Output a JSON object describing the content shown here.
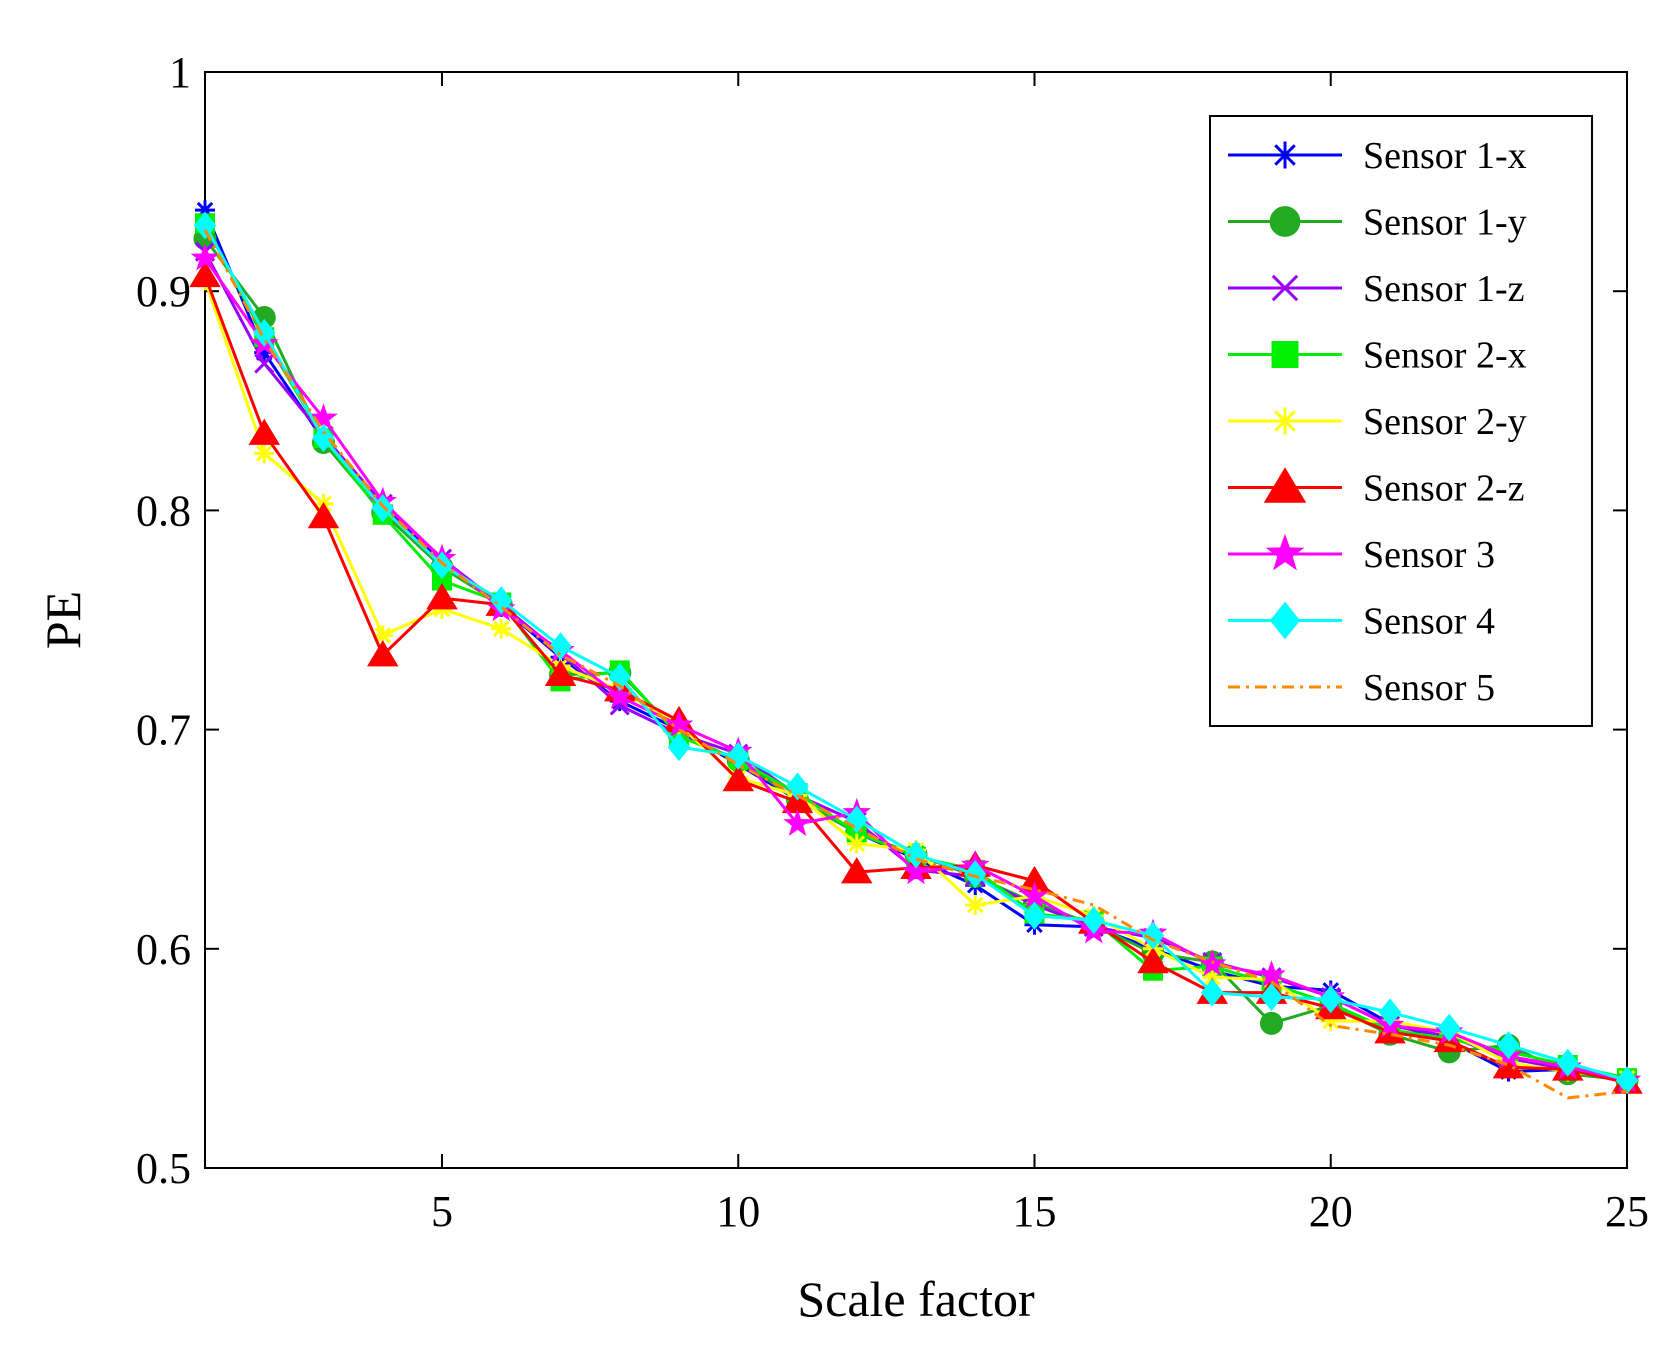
{
  "chart_data": {
    "type": "line",
    "title": "",
    "xlabel": "Scale factor",
    "ylabel": "PE",
    "xlim": [
      1,
      25
    ],
    "ylim": [
      0.5,
      1
    ],
    "xticks": [
      5,
      10,
      15,
      20,
      25
    ],
    "xtick_labels": [
      "5",
      "10",
      "15",
      "20",
      "25"
    ],
    "yticks": [
      0.5,
      0.6,
      0.7,
      0.8,
      0.9,
      1
    ],
    "ytick_labels": [
      "0.5",
      "0.6",
      "0.7",
      "0.8",
      "0.9",
      "1"
    ],
    "grid": false,
    "legend_position": "top-right",
    "x": [
      1,
      2,
      3,
      4,
      5,
      6,
      7,
      8,
      9,
      10,
      11,
      12,
      13,
      14,
      15,
      16,
      17,
      18,
      19,
      20,
      21,
      22,
      23,
      24,
      25
    ],
    "series": [
      {
        "name": "Sensor 1-x",
        "color": "#0000ff",
        "marker": "asterisk",
        "dash": "solid",
        "values": [
          0.937,
          0.872,
          0.832,
          0.802,
          0.776,
          0.756,
          0.733,
          0.713,
          0.7,
          0.684,
          0.668,
          0.653,
          0.641,
          0.629,
          0.611,
          0.61,
          0.6,
          0.59,
          0.583,
          0.581,
          0.566,
          0.558,
          0.544,
          0.545,
          0.539
        ]
      },
      {
        "name": "Sensor 1-y",
        "color": "#22aa22",
        "marker": "circle",
        "dash": "solid",
        "values": [
          0.924,
          0.888,
          0.831,
          0.799,
          0.774,
          0.757,
          0.725,
          0.726,
          0.698,
          0.686,
          0.668,
          0.653,
          0.643,
          0.633,
          0.621,
          0.611,
          0.598,
          0.594,
          0.566,
          0.574,
          0.561,
          0.553,
          0.556,
          0.543,
          0.54
        ]
      },
      {
        "name": "Sensor 1-z",
        "color": "#9900ff",
        "marker": "x",
        "dash": "solid",
        "values": [
          0.918,
          0.867,
          0.834,
          0.803,
          0.778,
          0.757,
          0.735,
          0.711,
          0.698,
          0.689,
          0.67,
          0.658,
          0.636,
          0.633,
          0.62,
          0.61,
          0.605,
          0.594,
          0.587,
          0.578,
          0.565,
          0.56,
          0.55,
          0.545,
          0.54
        ]
      },
      {
        "name": "Sensor 2-x",
        "color": "#00ee00",
        "marker": "square",
        "dash": "solid",
        "values": [
          0.931,
          0.879,
          0.833,
          0.798,
          0.768,
          0.758,
          0.722,
          0.727,
          0.697,
          0.686,
          0.671,
          0.653,
          0.642,
          0.636,
          0.616,
          0.613,
          0.59,
          0.592,
          0.584,
          0.575,
          0.563,
          0.559,
          0.553,
          0.547,
          0.541
        ]
      },
      {
        "name": "Sensor 2-y",
        "color": "#ffff00",
        "marker": "asterisk",
        "dash": "solid",
        "values": [
          0.905,
          0.826,
          0.803,
          0.743,
          0.755,
          0.746,
          0.729,
          0.718,
          0.702,
          0.678,
          0.67,
          0.648,
          0.645,
          0.62,
          0.624,
          0.615,
          0.6,
          0.587,
          0.586,
          0.567,
          0.567,
          0.562,
          0.548,
          0.544,
          0.541
        ]
      },
      {
        "name": "Sensor 2-z",
        "color": "#ff0000",
        "marker": "triangle",
        "dash": "solid",
        "values": [
          0.907,
          0.835,
          0.797,
          0.734,
          0.76,
          0.757,
          0.725,
          0.718,
          0.704,
          0.677,
          0.667,
          0.635,
          0.637,
          0.638,
          0.631,
          0.612,
          0.594,
          0.58,
          0.58,
          0.573,
          0.562,
          0.558,
          0.546,
          0.545,
          0.539
        ]
      },
      {
        "name": "Sensor 3",
        "color": "#ff00ff",
        "marker": "star",
        "dash": "solid",
        "values": [
          0.915,
          0.876,
          0.842,
          0.804,
          0.778,
          0.755,
          0.736,
          0.715,
          0.702,
          0.69,
          0.657,
          0.662,
          0.635,
          0.638,
          0.624,
          0.608,
          0.607,
          0.593,
          0.588,
          0.578,
          0.565,
          0.562,
          0.551,
          0.546,
          0.54
        ]
      },
      {
        "name": "Sensor 4",
        "color": "#00ffff",
        "marker": "diamond",
        "dash": "solid",
        "values": [
          0.93,
          0.881,
          0.833,
          0.801,
          0.775,
          0.759,
          0.738,
          0.724,
          0.692,
          0.688,
          0.674,
          0.659,
          0.643,
          0.634,
          0.615,
          0.613,
          0.606,
          0.58,
          0.578,
          0.577,
          0.571,
          0.564,
          0.556,
          0.548,
          0.54
        ]
      },
      {
        "name": "Sensor 5",
        "color": "#ff8800",
        "marker": "none",
        "dash": "dashdot",
        "values": [
          0.928,
          0.878,
          0.836,
          0.802,
          0.776,
          0.756,
          0.734,
          0.72,
          0.7,
          0.684,
          0.67,
          0.655,
          0.641,
          0.633,
          0.627,
          0.62,
          0.604,
          0.594,
          0.585,
          0.565,
          0.561,
          0.556,
          0.547,
          0.532,
          0.535
        ]
      }
    ]
  }
}
